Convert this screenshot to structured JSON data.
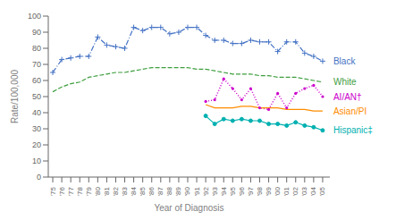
{
  "chart_data": {
    "type": "line",
    "xlabel": "Year of Diagnosis",
    "ylabel": "Rate/100,000",
    "x": [
      1975,
      1976,
      1977,
      1978,
      1979,
      1980,
      1981,
      1982,
      1983,
      1984,
      1985,
      1986,
      1987,
      1988,
      1989,
      1990,
      1991,
      1992,
      1993,
      1994,
      1995,
      1996,
      1997,
      1998,
      1999,
      2000,
      2001,
      2002,
      2003,
      2004,
      2005
    ],
    "series": [
      {
        "name": "Black",
        "color": "#4472c4",
        "line_style": "dashdot",
        "marker": "plus",
        "values": [
          65,
          73,
          74,
          75,
          75,
          87,
          82,
          81,
          80,
          93,
          91,
          93,
          93,
          89,
          90,
          93,
          93,
          88,
          85,
          85,
          83,
          83,
          85,
          84,
          84,
          78,
          84,
          84,
          77,
          75,
          72
        ]
      },
      {
        "name": "White",
        "color": "#3e9e3e",
        "line_style": "dashed",
        "values": [
          53,
          56,
          58,
          59,
          62,
          63,
          64,
          65,
          65,
          66,
          67,
          68,
          68,
          68,
          68,
          68,
          67,
          67,
          66,
          65,
          64,
          64,
          64,
          63,
          63,
          62,
          62,
          62,
          61,
          60,
          59
        ]
      },
      {
        "name": "AI/AN†",
        "color": "#cc00cc",
        "line_style": "dotted",
        "marker": "dot",
        "values": [
          null,
          null,
          null,
          null,
          null,
          null,
          null,
          null,
          null,
          null,
          null,
          null,
          null,
          null,
          null,
          null,
          null,
          47,
          48,
          61,
          55,
          48,
          55,
          43,
          42,
          52,
          43,
          52,
          55,
          57,
          50
        ]
      },
      {
        "name": "Asian/PI",
        "color": "#ff8c00",
        "line_style": "solid",
        "values": [
          null,
          null,
          null,
          null,
          null,
          null,
          null,
          null,
          null,
          null,
          null,
          null,
          null,
          null,
          null,
          null,
          null,
          45,
          43,
          43,
          43,
          44,
          44,
          43,
          43,
          43,
          42,
          42,
          42,
          41,
          41
        ]
      },
      {
        "name": "Hispanic‡",
        "color": "#00b0b0",
        "line_style": "solid",
        "marker": "circle",
        "values": [
          null,
          null,
          null,
          null,
          null,
          null,
          null,
          null,
          null,
          null,
          null,
          null,
          null,
          null,
          null,
          null,
          null,
          38,
          33,
          36,
          35,
          36,
          35,
          35,
          33,
          33,
          32,
          34,
          32,
          31,
          29
        ]
      }
    ],
    "xlim": [
      1974.5,
      2005.8
    ],
    "xticks": [
      {
        "value": 1975,
        "label": "'75"
      },
      {
        "value": 1976,
        "label": "'76"
      },
      {
        "value": 1977,
        "label": "'77"
      },
      {
        "value": 1978,
        "label": "'78"
      },
      {
        "value": 1979,
        "label": "'79"
      },
      {
        "value": 1980,
        "label": "'80"
      },
      {
        "value": 1981,
        "label": "'81"
      },
      {
        "value": 1982,
        "label": "'82"
      },
      {
        "value": 1983,
        "label": "'83"
      },
      {
        "value": 1984,
        "label": "'84"
      },
      {
        "value": 1985,
        "label": "'85"
      },
      {
        "value": 1986,
        "label": "'86"
      },
      {
        "value": 1987,
        "label": "'87"
      },
      {
        "value": 1988,
        "label": "'88"
      },
      {
        "value": 1989,
        "label": "'89"
      },
      {
        "value": 1990,
        "label": "'90"
      },
      {
        "value": 1991,
        "label": "'91"
      },
      {
        "value": 1992,
        "label": "'92"
      },
      {
        "value": 1993,
        "label": "'93"
      },
      {
        "value": 1994,
        "label": "'94"
      },
      {
        "value": 1995,
        "label": "'95"
      },
      {
        "value": 1996,
        "label": "'96"
      },
      {
        "value": 1997,
        "label": "'97"
      },
      {
        "value": 1998,
        "label": "'98"
      },
      {
        "value": 1999,
        "label": "'99"
      },
      {
        "value": 2000,
        "label": "'00"
      },
      {
        "value": 2001,
        "label": "'01"
      },
      {
        "value": 2002,
        "label": "'02"
      },
      {
        "value": 2003,
        "label": "'03"
      },
      {
        "value": 2004,
        "label": "'04"
      },
      {
        "value": 2005,
        "label": "'05"
      }
    ],
    "ylim": [
      0,
      100
    ],
    "yticks": [
      0,
      10,
      20,
      30,
      40,
      50,
      60,
      70,
      80,
      90,
      100
    ]
  }
}
